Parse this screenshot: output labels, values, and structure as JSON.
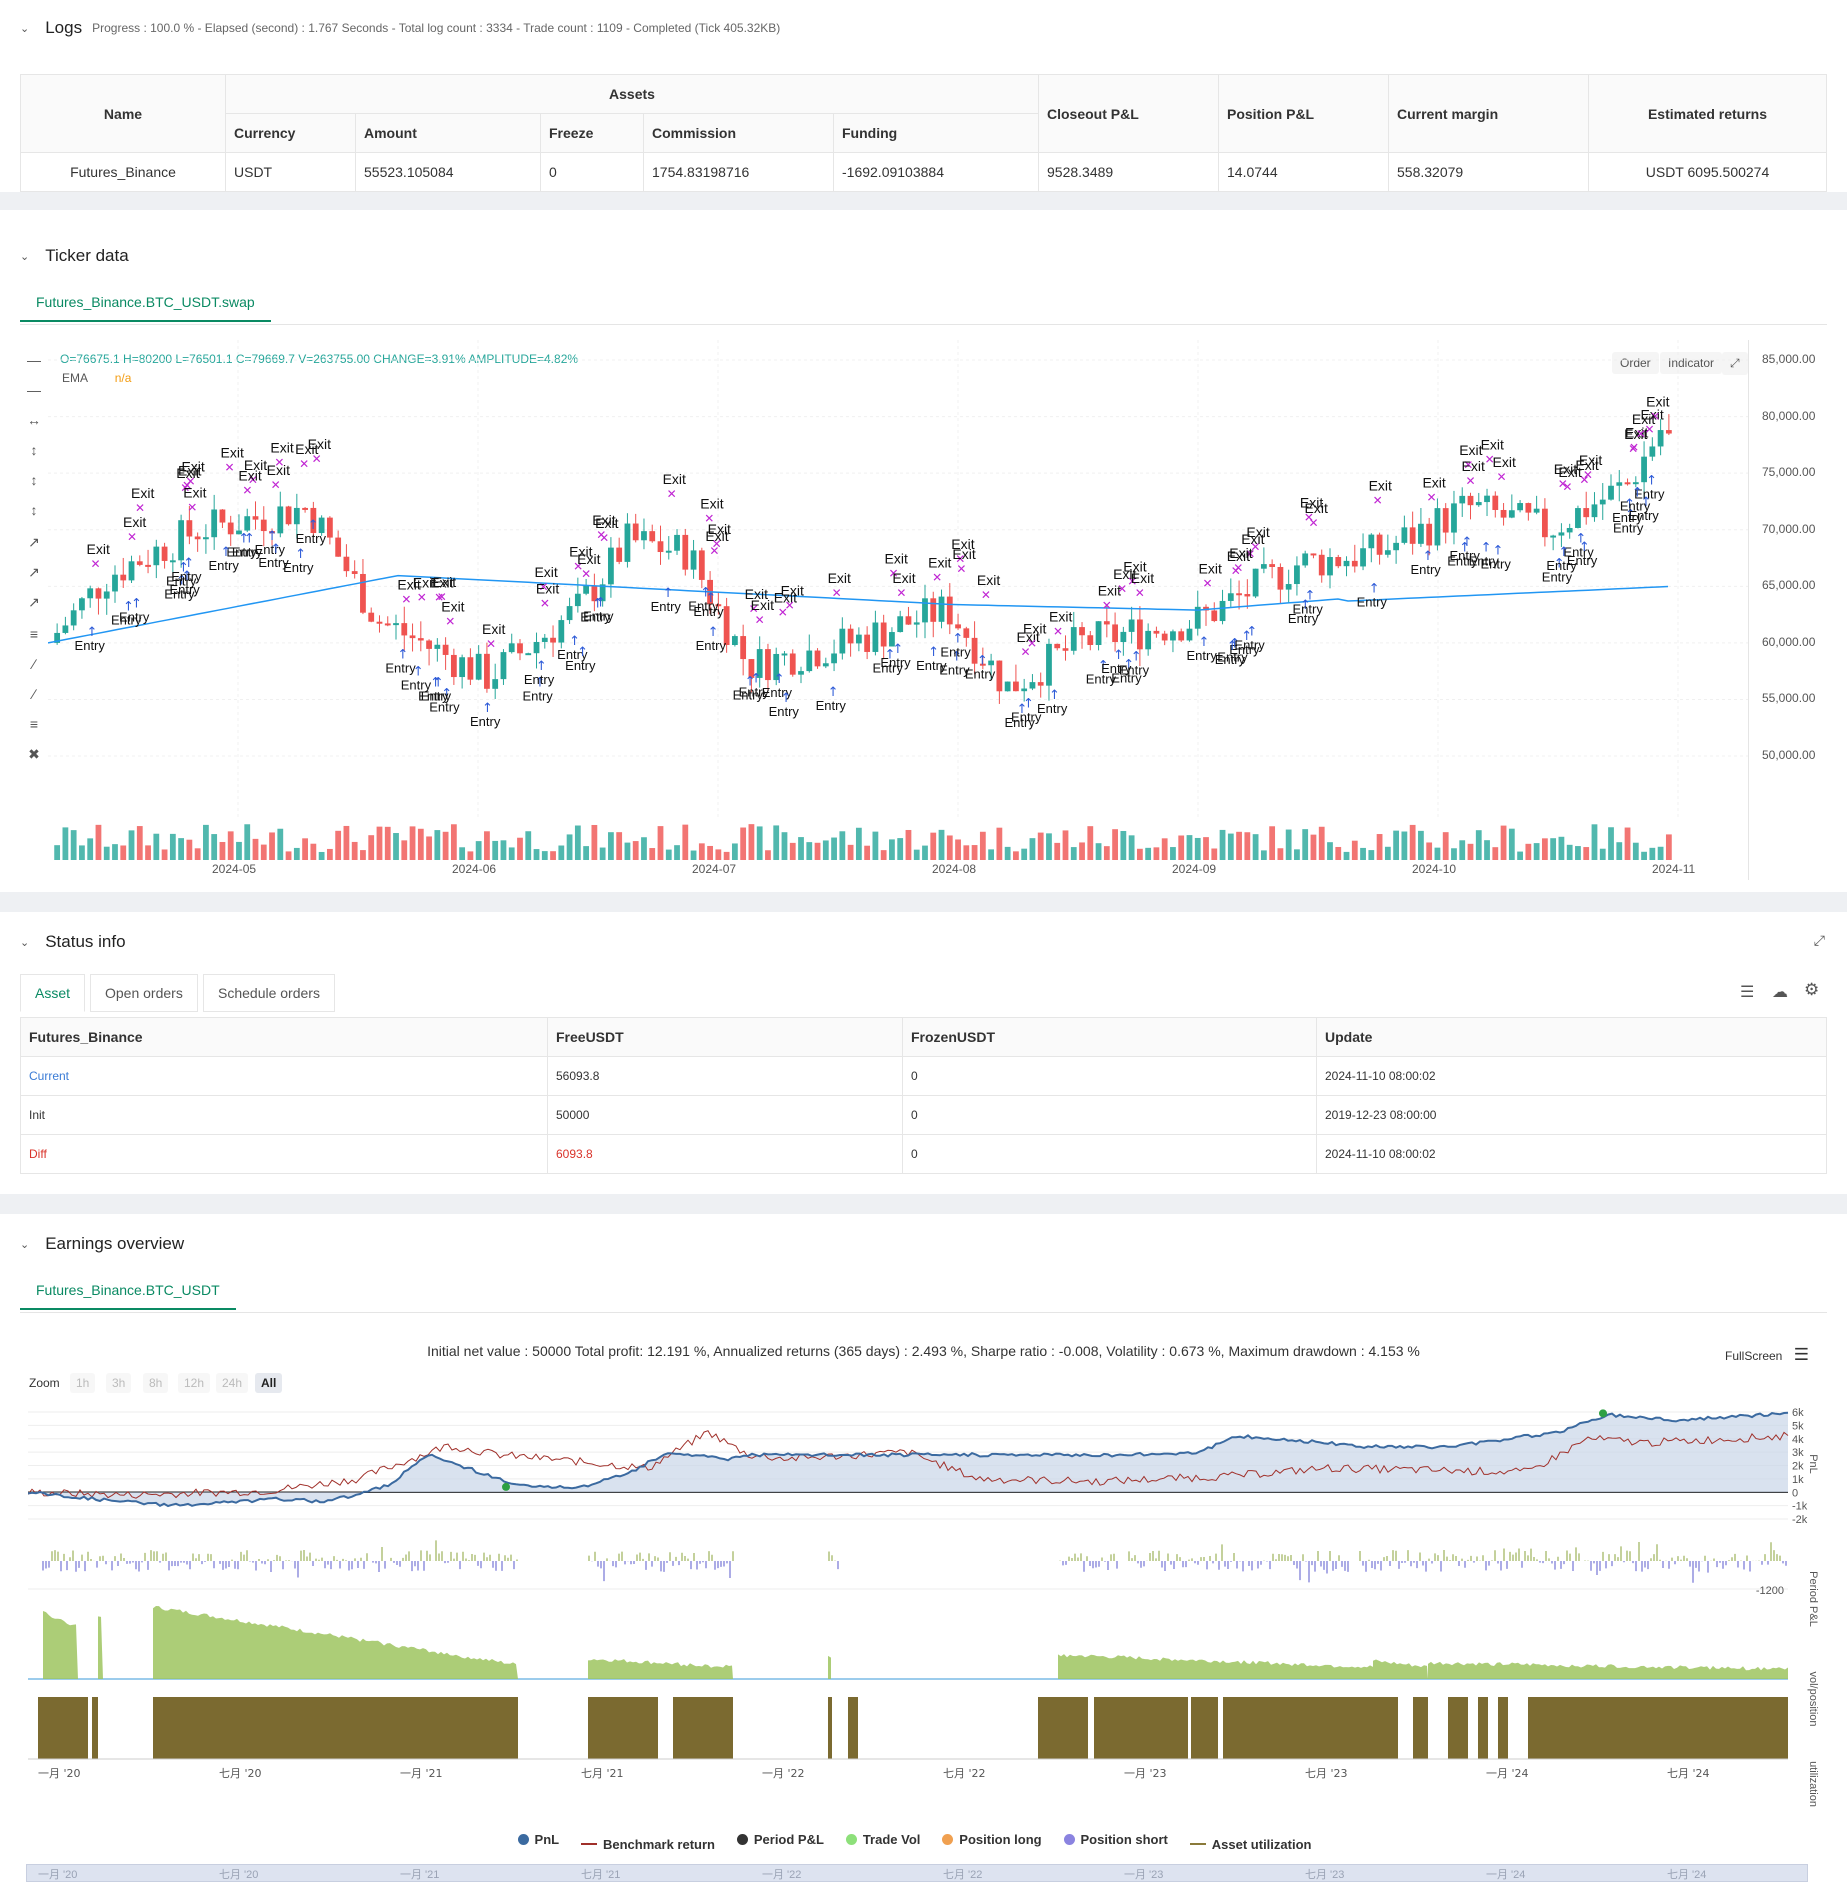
{
  "logs": {
    "title": "Logs",
    "summary": "Progress : 100.0 % - Elapsed (second) : 1.767  Seconds - Total log count : 3334 - Trade count : 1109 - Completed (Tick 405.32KB)",
    "headers": {
      "name": "Name",
      "assets": "Assets",
      "currency": "Currency",
      "amount": "Amount",
      "freeze": "Freeze",
      "commission": "Commission",
      "funding": "Funding",
      "closeout": "Closeout P&L",
      "position": "Position P&L",
      "margin": "Current margin",
      "returns": "Estimated returns"
    },
    "row": {
      "name": "Futures_Binance",
      "currency": "USDT",
      "amount": "55523.105084",
      "freeze": "0",
      "commission": "1754.83198716",
      "funding": "-1692.09103884",
      "closeout": "9528.3489",
      "position": "14.0744",
      "margin": "558.32079",
      "returns": "USDT 6095.500274"
    }
  },
  "ticker": {
    "title": "Ticker data",
    "tab": "Futures_Binance.BTC_USDT.swap",
    "ohlc": "O=76675.1 H=80200 L=76501.1 C=79669.7 V=263755.00 CHANGE=3.91% AMPLITUDE=4.82%",
    "ema_label": "EMA",
    "ema_value": "n/a",
    "btn_order": "Order",
    "btn_indicator": "Indicator",
    "y_ticks": [
      "85,000.00",
      "80,000.00",
      "75,000.00",
      "70,000.00",
      "65,000.00",
      "60,000.00",
      "55,000.00",
      "50,000.00"
    ],
    "x_ticks": [
      "2024-05",
      "2024-06",
      "2024-07",
      "2024-08",
      "2024-09",
      "2024-10",
      "2024-11"
    ],
    "marker_exit": "Exit",
    "marker_entry": "Entry",
    "colors": {
      "up": "#26a69a",
      "down": "#ef5350",
      "ema": "#2196f3"
    }
  },
  "status": {
    "title": "Status info",
    "tabs": [
      "Asset",
      "Open orders",
      "Schedule orders"
    ],
    "headers": [
      "Futures_Binance",
      "FreeUSDT",
      "FrozenUSDT",
      "Update"
    ],
    "rows": [
      {
        "label": "Current",
        "free": "56093.8",
        "frozen": "0",
        "update": "2024-11-10 08:00:02"
      },
      {
        "label": "Init",
        "free": "50000",
        "frozen": "0",
        "update": "2019-12-23 08:00:00"
      },
      {
        "label": "Diff",
        "free": "6093.8",
        "frozen": "0",
        "update": "2024-11-10 08:00:02"
      }
    ]
  },
  "earnings": {
    "title": "Earnings overview",
    "tab": "Futures_Binance.BTC_USDT",
    "summary": "Initial net value : 50000 Total profit: 12.191 %, Annualized returns (365 days) : 2.493 %, Sharpe ratio : -0.008, Volatility : 0.673 %, Maximum drawdown : 4.153 %",
    "fullscreen": "FullScreen",
    "zoom_label": "Zoom",
    "zoom_opts": [
      "1h",
      "3h",
      "8h",
      "12h",
      "24h",
      "All"
    ],
    "pnl_ticks": [
      "6k",
      "5k",
      "4k",
      "3k",
      "2k",
      "1k",
      "0",
      "-1k",
      "-2k"
    ],
    "period_tick": "-1200",
    "axis_titles": [
      "PnL",
      "Period P&L",
      "vol/position",
      "utilization"
    ],
    "x_ticks": [
      "一月 '20",
      "七月 '20",
      "一月 '21",
      "七月 '21",
      "一月 '22",
      "七月 '22",
      "一月 '23",
      "七月 '23",
      "一月 '24",
      "七月 '24"
    ],
    "legend": [
      "PnL",
      "Benchmark return",
      "Period P&L",
      "Trade Vol",
      "Position long",
      "Position short",
      "Asset utilization"
    ],
    "colors": {
      "pnl": "#3b6aa0",
      "benchmark": "#a0302a",
      "vol": "#9dc45f",
      "util": "#6d5a1a"
    }
  }
}
